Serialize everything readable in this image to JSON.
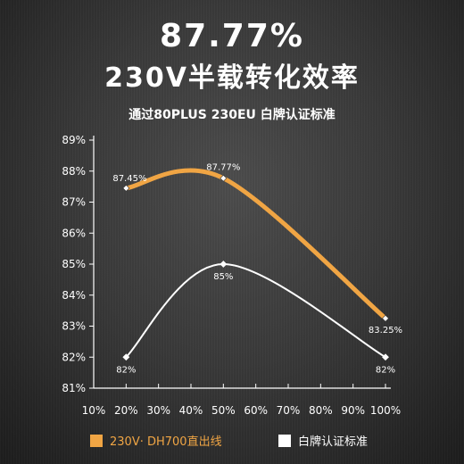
{
  "headline": {
    "value": "87.77%",
    "title": "230V半载转化效率",
    "subtitle": "通过80PLUS 230EU 白牌认证标准"
  },
  "colors": {
    "orange": "#f0a544",
    "white": "#ffffff",
    "axis": "#ffffff"
  },
  "legend": {
    "series_a": "230V· DH700直出线",
    "series_b": "白牌认证标准"
  },
  "chart_data": {
    "type": "line",
    "x_ticks": [
      "10%",
      "20%",
      "30%",
      "40%",
      "50%",
      "60%",
      "70%",
      "80%",
      "90%",
      "100%"
    ],
    "y_ticks": [
      "89%",
      "88%",
      "87%",
      "86%",
      "85%",
      "84%",
      "83%",
      "82%",
      "81%"
    ],
    "xlim": [
      10,
      100
    ],
    "ylim": [
      81,
      89
    ],
    "grid": false,
    "legend_position": "bottom",
    "series": [
      {
        "name": "230V· DH700直出线",
        "color": "#f0a544",
        "points": [
          {
            "x": 20,
            "y": 87.45,
            "label": "87.45%"
          },
          {
            "x": 50,
            "y": 87.77,
            "label": "87.77%"
          },
          {
            "x": 100,
            "y": 83.25,
            "label": "83.25%"
          }
        ]
      },
      {
        "name": "白牌认证标准",
        "color": "#ffffff",
        "points": [
          {
            "x": 20,
            "y": 82,
            "label": "82%"
          },
          {
            "x": 50,
            "y": 85,
            "label": "85%"
          },
          {
            "x": 100,
            "y": 82,
            "label": "82%"
          }
        ]
      }
    ]
  }
}
